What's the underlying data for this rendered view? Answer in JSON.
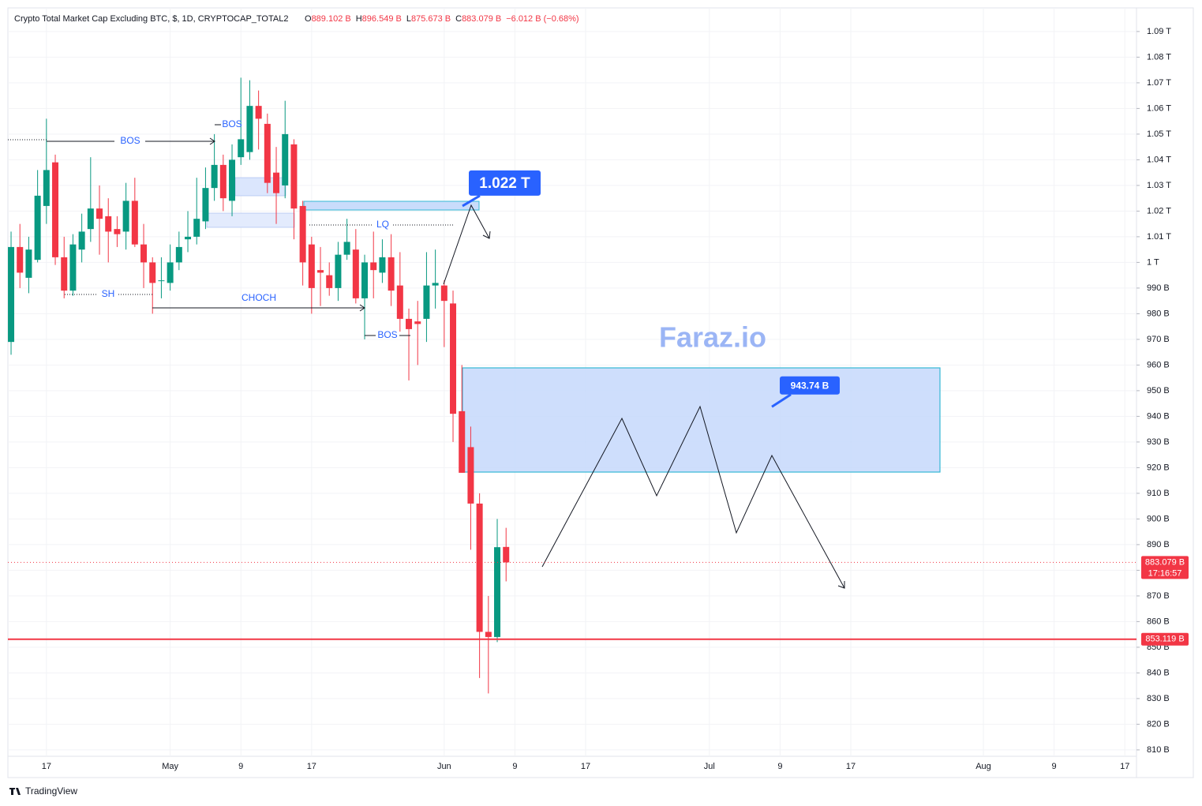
{
  "header": {
    "symbol": "Crypto Total Market Cap Excluding BTC, $, 1D, CRYPTOCAP_TOTAL2",
    "ohlc": [
      {
        "key": "O",
        "value": "889.102 B"
      },
      {
        "key": "H",
        "value": "896.549 B"
      },
      {
        "key": "L",
        "value": "875.673 B"
      },
      {
        "key": "C",
        "value": "883.079 B"
      }
    ],
    "change": "−6.012 B (−0.68%)"
  },
  "brand": "TradingView",
  "chart_data": {
    "type": "candlestick",
    "up_color": "#089981",
    "down_color": "#f23645",
    "grid": true,
    "x": [
      0,
      1,
      2,
      3,
      4,
      5,
      6,
      7,
      8,
      9,
      10,
      11,
      12,
      13,
      14,
      15,
      16,
      17,
      18,
      19,
      20,
      21,
      22,
      23,
      24,
      25,
      26,
      27,
      28,
      29,
      30,
      31,
      32,
      33,
      34,
      35,
      36,
      37,
      38,
      39,
      40,
      41,
      42,
      43,
      44,
      45,
      46,
      47,
      48,
      49,
      50,
      51,
      52,
      53,
      54,
      55,
      56
    ],
    "open": [
      969,
      1006,
      994,
      1001,
      1022,
      1039,
      1002,
      989,
      1005,
      1013,
      1021,
      1018,
      1013,
      1012,
      1024,
      1007,
      1000,
      993,
      992,
      1000,
      1009,
      1010,
      1016,
      1029,
      1038,
      1024,
      1041,
      1043,
      1061,
      1054,
      1035,
      1030,
      1046,
      1022,
      1007,
      997,
      995,
      990,
      1003,
      1005,
      986,
      1000,
      996,
      1002,
      991,
      978,
      977,
      978,
      991,
      991,
      984,
      942,
      928,
      906,
      856,
      854,
      889.102
    ],
    "high": [
      1012,
      1015,
      1010,
      1036,
      1056,
      1042,
      1010,
      1011,
      1019,
      1041,
      1030,
      1025,
      1018,
      1031,
      1033,
      1015,
      1002,
      1002,
      1007,
      1012,
      1020,
      1033,
      1037,
      1050,
      1042,
      1046,
      1072,
      1071,
      1067,
      1058,
      1045,
      1063,
      1048,
      1024,
      1010,
      1006,
      1000,
      1008,
      1017,
      1013,
      1003,
      1012,
      1009,
      1011,
      1004,
      982,
      985,
      1004,
      1005,
      993,
      989,
      960,
      936,
      910,
      870,
      900,
      896.549
    ],
    "low": [
      964,
      990,
      988,
      1000,
      1015,
      999,
      986,
      987,
      1000,
      1008,
      1003,
      1000,
      1006,
      1005,
      1006,
      990,
      980,
      986,
      989,
      997,
      1004,
      1007,
      1013,
      1024,
      1020,
      1018,
      1038,
      1040,
      1044,
      1027,
      1015,
      1025,
      1009,
      991,
      980,
      983,
      987,
      985,
      1001,
      984,
      970,
      986,
      992,
      983,
      973,
      954,
      960,
      969,
      982,
      967,
      930,
      918,
      888,
      838,
      832,
      852,
      875.673
    ],
    "close": [
      1006,
      996,
      1005,
      1026,
      1036,
      1002,
      989,
      1007,
      1012,
      1021,
      1017,
      1012,
      1011,
      1024,
      1007,
      1000,
      992,
      993,
      1000,
      1006,
      1010,
      1017,
      1029,
      1038,
      1025,
      1040,
      1048,
      1061,
      1056,
      1031,
      1027,
      1050,
      1021,
      1000,
      990,
      996,
      990,
      1003,
      1008,
      986,
      1000,
      997,
      1002,
      989,
      978,
      974,
      976,
      991,
      992,
      985,
      941,
      918,
      906,
      856,
      854,
      889,
      883.079
    ],
    "xlim": [
      -0.36,
      127.32
    ],
    "xticks": [
      {
        "value": 4,
        "label": "17"
      },
      {
        "value": 18,
        "label": "May"
      },
      {
        "value": 26,
        "label": "9"
      },
      {
        "value": 34,
        "label": "17"
      },
      {
        "value": 49,
        "label": "Jun"
      },
      {
        "value": 57,
        "label": "9"
      },
      {
        "value": 65,
        "label": "17"
      },
      {
        "value": 79,
        "label": "Jul"
      },
      {
        "value": 87,
        "label": "9"
      },
      {
        "value": 95,
        "label": "17"
      },
      {
        "value": 110,
        "label": "Aug"
      },
      {
        "value": 118,
        "label": "9"
      },
      {
        "value": 126,
        "label": "17"
      }
    ],
    "ylim": [
      799.2,
      1099.2
    ],
    "yticks": [
      {
        "value": 1090,
        "label": "1.09 T"
      },
      {
        "value": 1080,
        "label": "1.08 T"
      },
      {
        "value": 1070,
        "label": "1.07 T"
      },
      {
        "value": 1060,
        "label": "1.06 T"
      },
      {
        "value": 1050,
        "label": "1.05 T"
      },
      {
        "value": 1040,
        "label": "1.04 T"
      },
      {
        "value": 1030,
        "label": "1.03 T"
      },
      {
        "value": 1020,
        "label": "1.02 T"
      },
      {
        "value": 1010,
        "label": "1.01 T"
      },
      {
        "value": 1000,
        "label": "1 T"
      },
      {
        "value": 990,
        "label": "990 B"
      },
      {
        "value": 980,
        "label": "980 B"
      },
      {
        "value": 970,
        "label": "970 B"
      },
      {
        "value": 960,
        "label": "960 B"
      },
      {
        "value": 950,
        "label": "950 B"
      },
      {
        "value": 940,
        "label": "940 B"
      },
      {
        "value": 930,
        "label": "930 B"
      },
      {
        "value": 920,
        "label": "920 B"
      },
      {
        "value": 910,
        "label": "910 B"
      },
      {
        "value": 900,
        "label": "900 B"
      },
      {
        "value": 890,
        "label": "890 B"
      },
      {
        "value": 880,
        "label": "880 B"
      },
      {
        "value": 870,
        "label": "870 B"
      },
      {
        "value": 860,
        "label": "860 B"
      },
      {
        "value": 850,
        "label": "850 B"
      },
      {
        "value": 840,
        "label": "840 B"
      },
      {
        "value": 830,
        "label": "830 B"
      },
      {
        "value": 820,
        "label": "820 B"
      },
      {
        "value": 810,
        "label": "810 B"
      }
    ],
    "last_price": {
      "value": 883.079,
      "label": "883.079 B",
      "countdown": "17:16:57"
    },
    "level": {
      "value": 853.119,
      "label": "853.119 B"
    },
    "callouts": [
      {
        "value": 1022,
        "label": "1.022 T"
      },
      {
        "value": 943.74,
        "label": "943.74 B"
      }
    ],
    "annotations": [
      "BOS",
      "BOS",
      "SH",
      "CHOCH",
      "LQ",
      "BOS"
    ],
    "watermark": "Faraz.io"
  }
}
